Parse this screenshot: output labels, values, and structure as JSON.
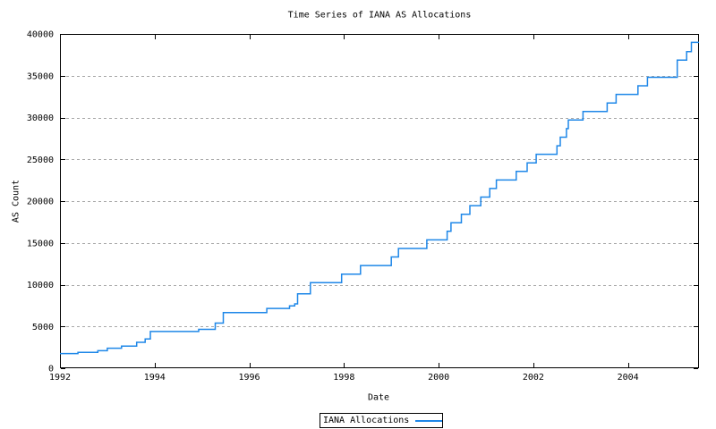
{
  "chart_data": {
    "type": "line",
    "line_style": "steps-post",
    "title": "Time Series of IANA AS Allocations",
    "xlabel": "Date",
    "ylabel": "AS Count",
    "xlim": [
      1992,
      2005.5
    ],
    "ylim": [
      0,
      40000
    ],
    "xticks": [
      1992,
      1994,
      1996,
      1998,
      2000,
      2002,
      2004
    ],
    "yticks": [
      0,
      5000,
      10000,
      15000,
      20000,
      25000,
      30000,
      35000,
      40000
    ],
    "grid": "horizontal dashed at y ticks",
    "grid_color": "#a8a8a8",
    "axis_color": "#000000",
    "background_color": "#ffffff",
    "legend": {
      "position": "below-center-boxed",
      "entries": [
        {
          "label": "IANA Allocations",
          "color": "#1e87e8"
        }
      ]
    },
    "series": [
      {
        "name": "IANA Allocations",
        "color": "#1e87e8",
        "x_end": 2005.5,
        "points": [
          [
            1992.0,
            1750
          ],
          [
            1992.38,
            1900
          ],
          [
            1992.8,
            2100
          ],
          [
            1993.0,
            2400
          ],
          [
            1993.3,
            2650
          ],
          [
            1993.62,
            3100
          ],
          [
            1993.8,
            3500
          ],
          [
            1993.91,
            4400
          ],
          [
            1994.93,
            4650
          ],
          [
            1995.28,
            5400
          ],
          [
            1995.45,
            6650
          ],
          [
            1996.37,
            7150
          ],
          [
            1996.85,
            7450
          ],
          [
            1996.96,
            7700
          ],
          [
            1997.02,
            8900
          ],
          [
            1997.29,
            10240
          ],
          [
            1997.95,
            11264
          ],
          [
            1998.35,
            12288
          ],
          [
            1999.0,
            13312
          ],
          [
            1999.15,
            14336
          ],
          [
            1999.75,
            15360
          ],
          [
            2000.18,
            16384
          ],
          [
            2000.26,
            17408
          ],
          [
            2000.48,
            18432
          ],
          [
            2000.66,
            19456
          ],
          [
            2000.89,
            20480
          ],
          [
            2001.08,
            21504
          ],
          [
            2001.22,
            22528
          ],
          [
            2001.64,
            23552
          ],
          [
            2001.87,
            24576
          ],
          [
            2002.06,
            25600
          ],
          [
            2002.5,
            26624
          ],
          [
            2002.57,
            27648
          ],
          [
            2002.7,
            28672
          ],
          [
            2002.74,
            29696
          ],
          [
            2003.05,
            30720
          ],
          [
            2003.56,
            31744
          ],
          [
            2003.75,
            32768
          ],
          [
            2004.21,
            33792
          ],
          [
            2004.41,
            34816
          ],
          [
            2005.04,
            36864
          ],
          [
            2005.24,
            37888
          ],
          [
            2005.34,
            39000
          ]
        ]
      }
    ]
  }
}
